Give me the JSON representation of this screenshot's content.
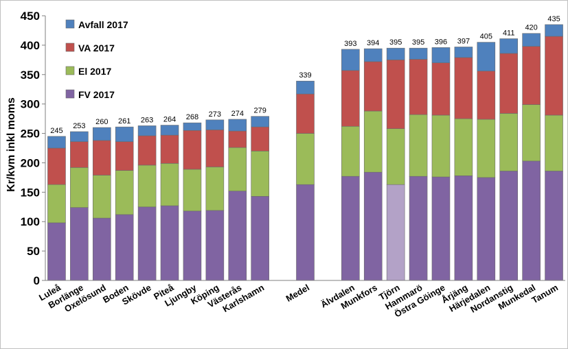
{
  "chart_data": {
    "type": "bar",
    "stacked": true,
    "title": "",
    "xlabel": "",
    "ylabel": "Kr/kvm inkl moms",
    "ylim": [
      0,
      450
    ],
    "yticks": [
      0,
      50,
      100,
      150,
      200,
      250,
      300,
      350,
      400,
      450
    ],
    "grid": false,
    "legend_position": "top-left",
    "categories": [
      "Luleå",
      "Borlänge",
      "Oxelösund",
      "Boden",
      "Skövde",
      "Piteå",
      "Ljungby",
      "Köping",
      "Västerås",
      "Karlshamn",
      "",
      "Medel",
      "",
      "Älvdalen",
      "Munkfors",
      "Tjörn",
      "Hammarö",
      "Östra Göinge",
      "Årjäng",
      "Härjedalen",
      "Nordanstig",
      "Munkedal",
      "Tanum"
    ],
    "totals": [
      "245",
      "253",
      "260",
      "261",
      "263",
      "264",
      "268",
      "273",
      "274",
      "279",
      "",
      "339",
      "",
      "393",
      "394",
      "395",
      "395",
      "396",
      "397",
      "405",
      "411",
      "420",
      "435"
    ],
    "series": [
      {
        "name": "FV 2017",
        "color": "#8064a2",
        "values": [
          98,
          124,
          106,
          112,
          125,
          127,
          118,
          119,
          152,
          143,
          null,
          163,
          null,
          177,
          184,
          163,
          177,
          176,
          178,
          175,
          186,
          203,
          186
        ]
      },
      {
        "name": "El 2017",
        "color": "#9bbb59",
        "values": [
          65,
          68,
          73,
          75,
          71,
          72,
          71,
          74,
          74,
          77,
          null,
          87,
          null,
          85,
          104,
          95,
          105,
          105,
          97,
          99,
          98,
          96,
          95
        ]
      },
      {
        "name": "VA 2017",
        "color": "#c0504d",
        "values": [
          62,
          44,
          59,
          49,
          50,
          48,
          66,
          63,
          28,
          41,
          null,
          67,
          null,
          95,
          84,
          117,
          94,
          89,
          104,
          82,
          102,
          99,
          134
        ]
      },
      {
        "name": "Avfall 2017",
        "color": "#4f81bd",
        "values": [
          20,
          17,
          22,
          25,
          17,
          17,
          13,
          17,
          20,
          18,
          null,
          22,
          null,
          36,
          22,
          20,
          19,
          26,
          18,
          49,
          25,
          22,
          20
        ]
      }
    ],
    "highlight": {
      "category": "Tjörn",
      "series": "FV 2017",
      "color": "#b3a2c7"
    }
  }
}
